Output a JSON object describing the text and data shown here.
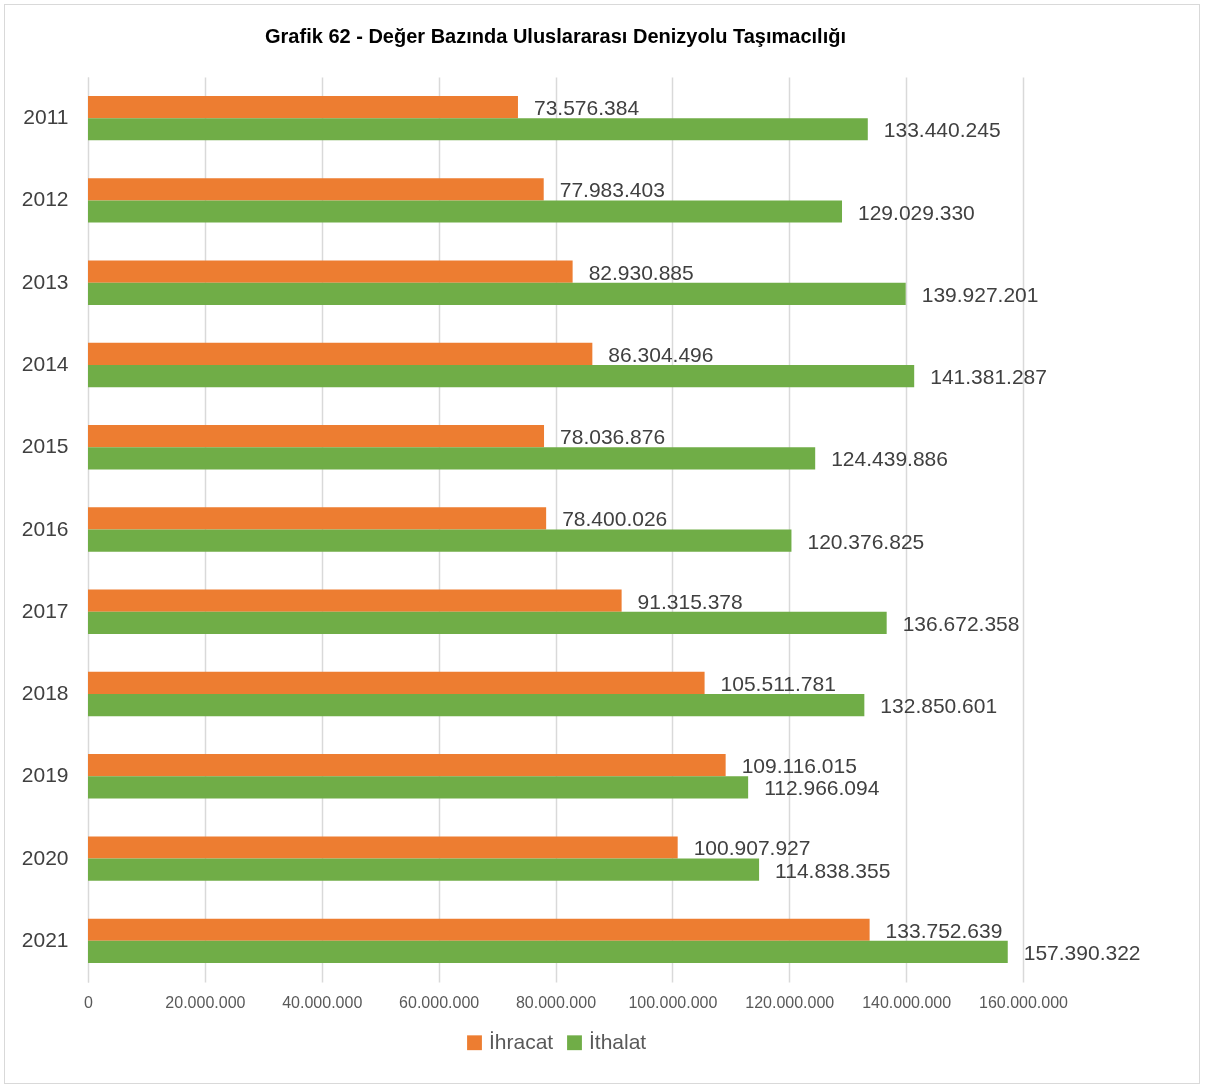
{
  "chart_data": {
    "type": "bar",
    "title": "Grafik 62 - Değer Bazında Uluslararası Denizyolu Taşımacılığı",
    "orientation": "horizontal",
    "categories": [
      "2011",
      "2012",
      "2013",
      "2014",
      "2015",
      "2016",
      "2017",
      "2018",
      "2019",
      "2020",
      "2021"
    ],
    "series": [
      {
        "name": "İhracat",
        "color": "#ed7d31",
        "values": [
          73576384,
          77983403,
          82930885,
          86304496,
          78036876,
          78400026,
          91315378,
          105511781,
          109116015,
          100907927,
          133752639
        ],
        "value_labels": [
          "73.576.384",
          "77.983.403",
          "82.930.885",
          "86.304.496",
          "78.036.876",
          "78.400.026",
          "91.315.378",
          "105.511.781",
          "109.116.015",
          "100.907.927",
          "133.752.639"
        ]
      },
      {
        "name": "İthalat",
        "color": "#70ad47",
        "values": [
          133440245,
          129029330,
          139927201,
          141381287,
          124439886,
          120376825,
          136672358,
          132850601,
          112966094,
          114838355,
          157390322
        ],
        "value_labels": [
          "133.440.245",
          "129.029.330",
          "139.927.201",
          "141.381.287",
          "124.439.886",
          "120.376.825",
          "136.672.358",
          "132.850.601",
          "112.966.094",
          "114.838.355",
          "157.390.322"
        ]
      }
    ],
    "xlim": [
      0,
      160000000
    ],
    "xticks": [
      0,
      {
        "value": 20000000,
        "label": "20.000.000"
      },
      {
        "value": 40000000,
        "label": "40.000.000"
      },
      {
        "value": 60000000,
        "label": "60.000.000"
      },
      {
        "value": 80000000,
        "label": "80.000.000"
      },
      {
        "value": 100000000,
        "label": "100.000.000"
      },
      {
        "value": 120000000,
        "label": "120.000.000"
      },
      {
        "value": 140000000,
        "label": "140.000.000"
      },
      {
        "value": 160000000,
        "label": "160.000.000"
      }
    ],
    "grid": "x",
    "legend": "bottom"
  }
}
